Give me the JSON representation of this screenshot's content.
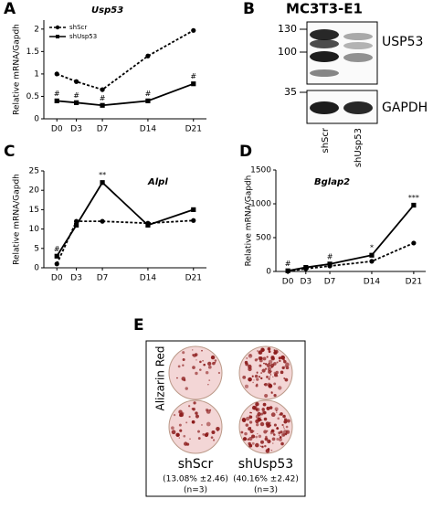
{
  "panel_labels": [
    "A",
    "B",
    "C",
    "D",
    "E"
  ],
  "chart_data": [
    {
      "type": "line",
      "title": "Usp53",
      "ylabel": "Relative mRNA/Gapdh",
      "x": [
        0,
        3,
        7,
        14,
        21
      ],
      "xlim": [
        -2,
        23
      ],
      "xticks": [
        {
          "value": 0,
          "label": "D0"
        },
        {
          "value": 3,
          "label": "D3"
        },
        {
          "value": 7,
          "label": "D7"
        },
        {
          "value": 14,
          "label": "D14"
        },
        {
          "value": 21,
          "label": "D21"
        }
      ],
      "ylim": [
        0,
        2.2
      ],
      "yticks": [
        0,
        0.5,
        1,
        1.5,
        2
      ],
      "legend": "upper left",
      "series": [
        {
          "name": "shScr",
          "color": "#000000",
          "line_style": "dashed",
          "marker": "circle",
          "values": [
            1.0,
            0.83,
            0.65,
            1.4,
            1.97
          ],
          "annotations": [
            null,
            null,
            null,
            null,
            null
          ]
        },
        {
          "name": "shUsp53",
          "color": "#000000",
          "line_style": "solid",
          "marker": "square",
          "values": [
            0.4,
            0.36,
            0.3,
            0.4,
            0.78
          ],
          "annotations": [
            "#",
            "#",
            "#",
            "#",
            "#"
          ]
        }
      ]
    },
    {
      "type": "line",
      "title": "Alpl",
      "ylabel": "Relative mRNA/Gapdh",
      "x": [
        0,
        3,
        7,
        14,
        21
      ],
      "xlim": [
        -2,
        23
      ],
      "xticks": [
        {
          "value": 0,
          "label": "D0"
        },
        {
          "value": 3,
          "label": "D3"
        },
        {
          "value": 7,
          "label": "D7"
        },
        {
          "value": 14,
          "label": "D14"
        },
        {
          "value": 21,
          "label": "D21"
        }
      ],
      "ylim": [
        0,
        25
      ],
      "yticks": [
        0,
        5,
        10,
        15,
        20,
        25
      ],
      "series": [
        {
          "color": "#000000",
          "line_style": "dashed",
          "marker": "circle",
          "values": [
            1,
            12,
            12,
            11.5,
            12.2
          ],
          "annotations": [
            null,
            null,
            null,
            null,
            null
          ]
        },
        {
          "color": "#000000",
          "line_style": "solid",
          "marker": "square",
          "values": [
            3,
            11,
            22,
            11,
            15
          ],
          "annotations": [
            "#",
            null,
            "**",
            null,
            null
          ]
        }
      ]
    },
    {
      "type": "line",
      "title": "Bglap2",
      "ylabel": "Relative mRNA/Gapdh",
      "x": [
        0,
        3,
        7,
        14,
        21
      ],
      "xlim": [
        -2,
        23
      ],
      "xticks": [
        {
          "value": 0,
          "label": "D0"
        },
        {
          "value": 3,
          "label": "D3"
        },
        {
          "value": 7,
          "label": "D7"
        },
        {
          "value": 14,
          "label": "D14"
        },
        {
          "value": 21,
          "label": "D21"
        }
      ],
      "ylim": [
        0,
        1500
      ],
      "yticks": [
        0,
        500,
        1000,
        1500
      ],
      "series": [
        {
          "color": "#000000",
          "line_style": "dashed",
          "marker": "circle",
          "values": [
            5,
            40,
            80,
            150,
            420
          ],
          "annotations": [
            null,
            null,
            null,
            null,
            null
          ]
        },
        {
          "color": "#000000",
          "line_style": "solid",
          "marker": "square",
          "values": [
            10,
            60,
            110,
            240,
            980
          ],
          "annotations": [
            "#",
            null,
            "#",
            "*",
            "***"
          ]
        }
      ]
    }
  ],
  "blot": {
    "title": "MC3T3-E1",
    "markers": [
      "130",
      "100",
      "35"
    ],
    "proteins": [
      "USP53",
      "GAPDH"
    ],
    "lanes": [
      "shScr",
      "shUsp53"
    ]
  },
  "staining": {
    "stain": "Alizarin Red",
    "groups": [
      {
        "name": "shScr",
        "quantification": "(13.08% ±2.46)",
        "n": "(n=3)"
      },
      {
        "name": "shUsp53",
        "quantification": "(40.16% ±2.42)",
        "n": "(n=3)"
      }
    ]
  }
}
